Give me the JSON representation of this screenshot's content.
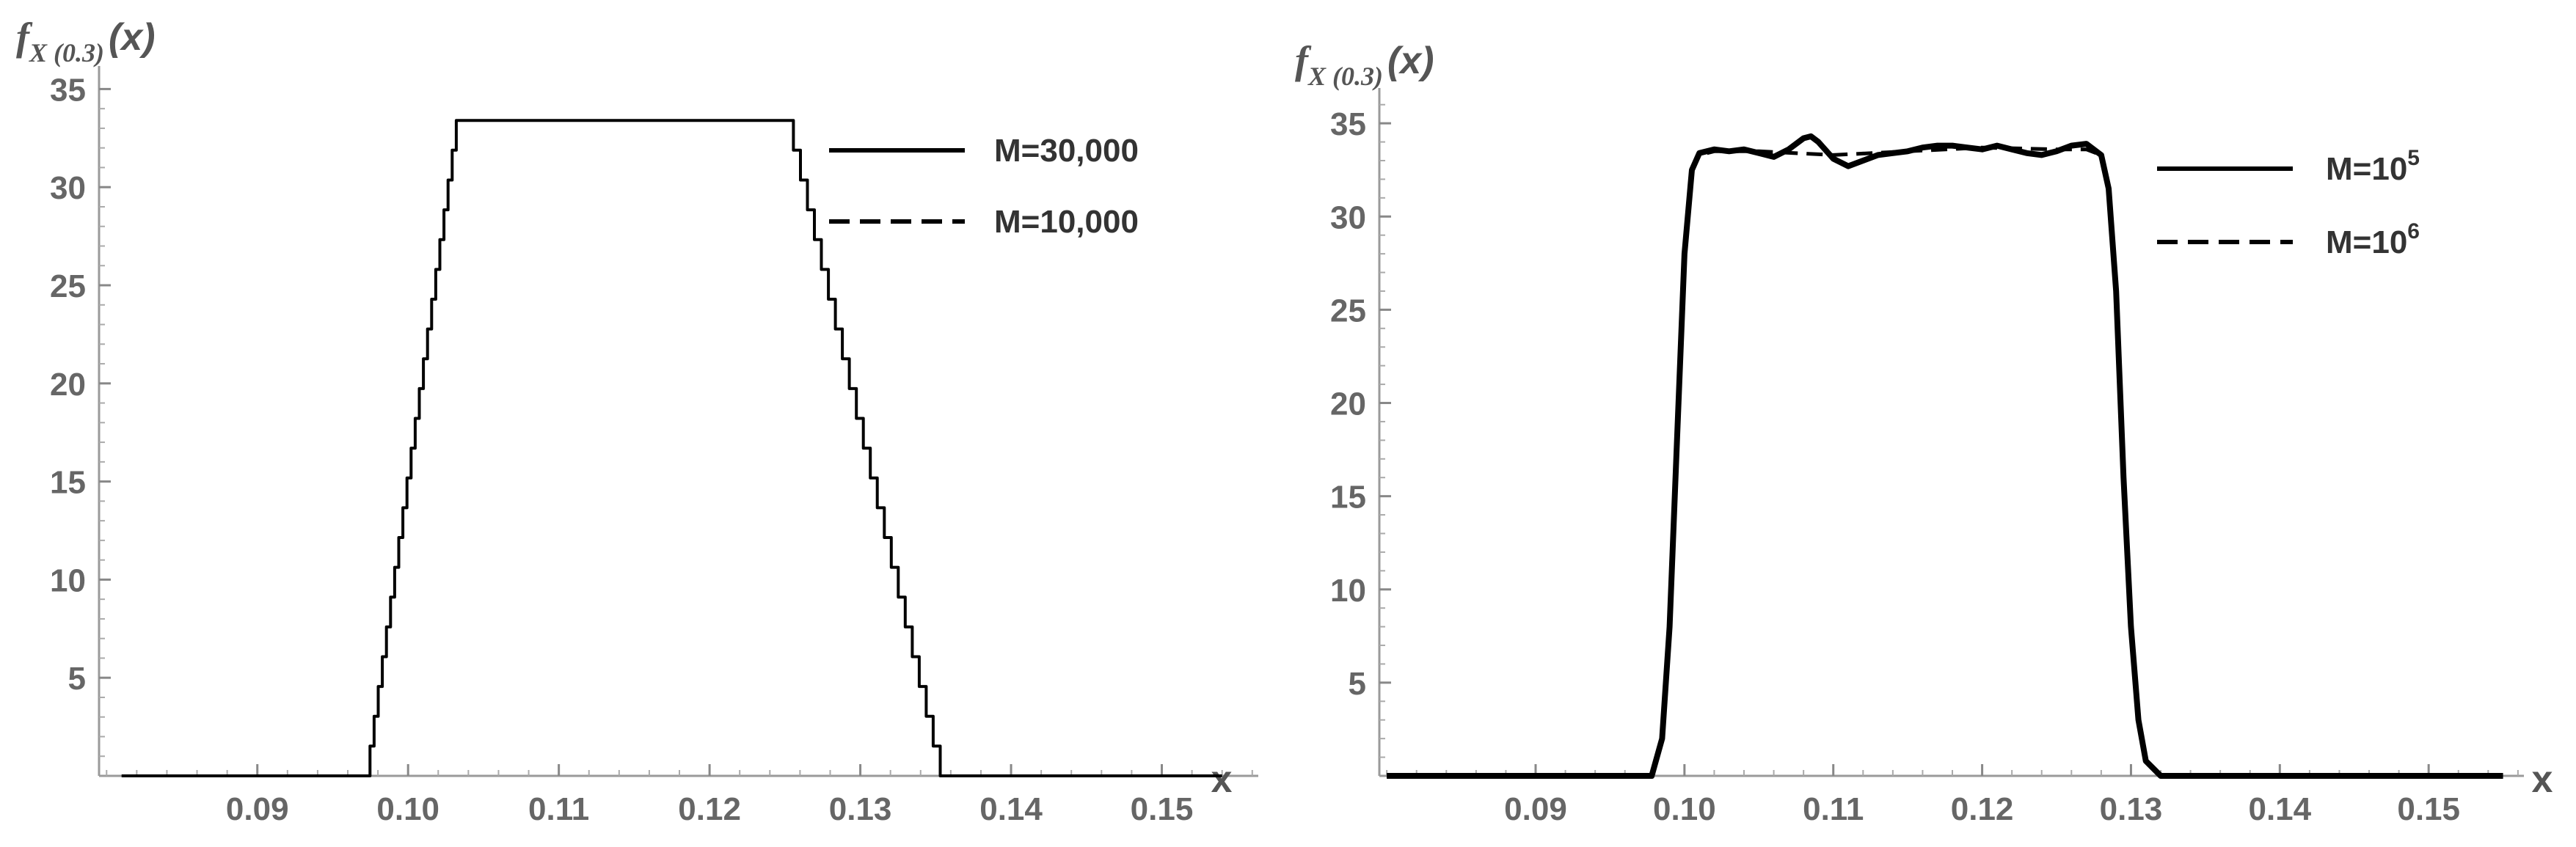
{
  "chart_data": [
    {
      "type": "line",
      "title": "",
      "ylabel": "(x)",
      "ylabel_f": "f",
      "ylabel_sub": "X (0.3)",
      "xlabel": "x",
      "xlim": [
        0.08,
        0.155
      ],
      "ylim": [
        0,
        35
      ],
      "x_ticks": [
        "0.09",
        "0.10",
        "0.11",
        "0.12",
        "0.13",
        "0.14",
        "0.15"
      ],
      "x_tick_values": [
        0.09,
        0.1,
        0.11,
        0.12,
        0.13,
        0.14,
        0.15
      ],
      "y_ticks": [
        "5",
        "10",
        "15",
        "20",
        "25",
        "30",
        "35"
      ],
      "y_tick_values": [
        5,
        10,
        15,
        20,
        25,
        30,
        35
      ],
      "legend_position": "top-right",
      "series": [
        {
          "name": "M=30,000",
          "style": "solid",
          "points": [
            [
              0.081,
              0
            ],
            [
              0.0972,
              0
            ],
            [
              0.1032,
              33.4
            ],
            [
              0.1251,
              33.4
            ],
            [
              0.1353,
              0
            ],
            [
              0.154,
              0
            ]
          ]
        },
        {
          "name": "M=10,000",
          "style": "dashed",
          "points": [
            [
              0.081,
              0
            ],
            [
              0.0972,
              0
            ],
            [
              0.1032,
              33.4
            ],
            [
              0.1251,
              33.4
            ],
            [
              0.1353,
              0
            ],
            [
              0.154,
              0
            ]
          ]
        }
      ]
    },
    {
      "type": "line",
      "title": "",
      "ylabel": "(x)",
      "ylabel_f": "f",
      "ylabel_sub": "X (0.3)",
      "xlabel": "x",
      "xlim": [
        0.08,
        0.155
      ],
      "ylim": [
        0,
        35
      ],
      "x_ticks": [
        "0.09",
        "0.10",
        "0.11",
        "0.12",
        "0.13",
        "0.14",
        "0.15"
      ],
      "x_tick_values": [
        0.09,
        0.1,
        0.11,
        0.12,
        0.13,
        0.14,
        0.15
      ],
      "y_ticks": [
        "5",
        "10",
        "15",
        "20",
        "25",
        "30",
        "35"
      ],
      "y_tick_values": [
        5,
        10,
        15,
        20,
        25,
        30,
        35
      ],
      "legend_position": "top-right",
      "series": [
        {
          "name": "M=10",
          "name_sup": "5",
          "style": "solid",
          "points": [
            [
              0.08,
              0
            ],
            [
              0.0978,
              0
            ],
            [
              0.0985,
              2
            ],
            [
              0.099,
              8
            ],
            [
              0.0995,
              18
            ],
            [
              0.1,
              28
            ],
            [
              0.1005,
              32.5
            ],
            [
              0.101,
              33.4
            ],
            [
              0.102,
              33.6
            ],
            [
              0.103,
              33.5
            ],
            [
              0.104,
              33.6
            ],
            [
              0.105,
              33.4
            ],
            [
              0.106,
              33.2
            ],
            [
              0.107,
              33.6
            ],
            [
              0.108,
              34.2
            ],
            [
              0.1085,
              34.3
            ],
            [
              0.109,
              34.0
            ],
            [
              0.11,
              33.1
            ],
            [
              0.111,
              32.7
            ],
            [
              0.112,
              33.0
            ],
            [
              0.113,
              33.3
            ],
            [
              0.114,
              33.4
            ],
            [
              0.115,
              33.5
            ],
            [
              0.116,
              33.7
            ],
            [
              0.117,
              33.8
            ],
            [
              0.118,
              33.8
            ],
            [
              0.119,
              33.7
            ],
            [
              0.12,
              33.6
            ],
            [
              0.121,
              33.8
            ],
            [
              0.122,
              33.6
            ],
            [
              0.123,
              33.4
            ],
            [
              0.124,
              33.3
            ],
            [
              0.125,
              33.5
            ],
            [
              0.126,
              33.8
            ],
            [
              0.127,
              33.9
            ],
            [
              0.128,
              33.3
            ],
            [
              0.1285,
              31.5
            ],
            [
              0.129,
              26
            ],
            [
              0.1295,
              16
            ],
            [
              0.13,
              8
            ],
            [
              0.1305,
              3
            ],
            [
              0.131,
              0.8
            ],
            [
              0.132,
              0
            ],
            [
              0.155,
              0
            ]
          ]
        },
        {
          "name": "M=10",
          "name_sup": "6",
          "style": "dashed",
          "points": [
            [
              0.08,
              0
            ],
            [
              0.0978,
              0
            ],
            [
              0.0985,
              2
            ],
            [
              0.099,
              8
            ],
            [
              0.0995,
              18
            ],
            [
              0.1,
              28
            ],
            [
              0.1005,
              32.5
            ],
            [
              0.101,
              33.3
            ],
            [
              0.102,
              33.5
            ],
            [
              0.105,
              33.5
            ],
            [
              0.11,
              33.3
            ],
            [
              0.115,
              33.5
            ],
            [
              0.12,
              33.7
            ],
            [
              0.125,
              33.6
            ],
            [
              0.127,
              33.6
            ],
            [
              0.128,
              33.3
            ],
            [
              0.1285,
              31.5
            ],
            [
              0.129,
              26
            ],
            [
              0.1295,
              16
            ],
            [
              0.13,
              8
            ],
            [
              0.1305,
              3
            ],
            [
              0.131,
              0.8
            ],
            [
              0.132,
              0
            ],
            [
              0.155,
              0
            ]
          ]
        }
      ]
    }
  ]
}
